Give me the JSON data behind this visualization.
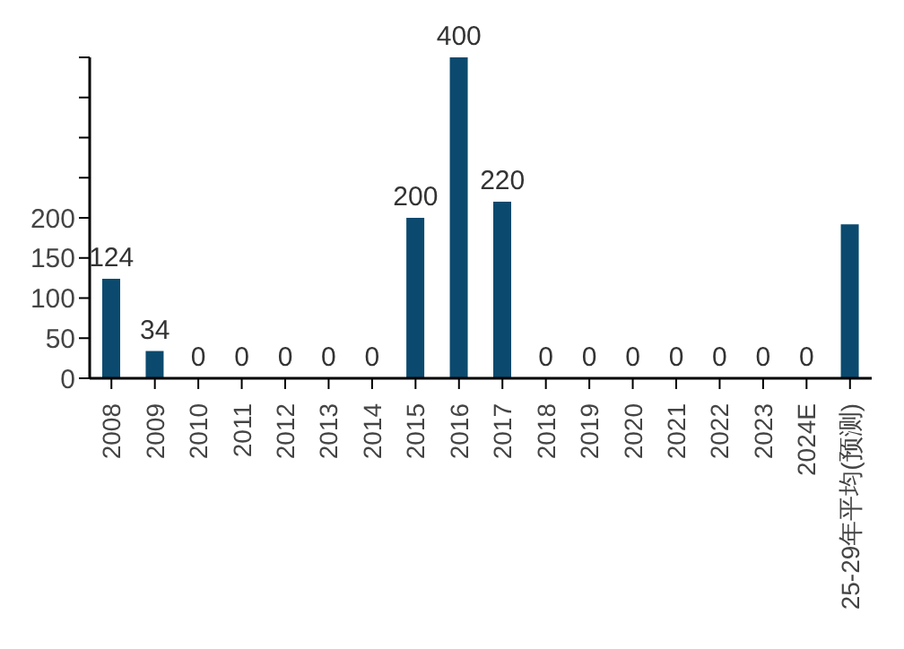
{
  "chart_data": {
    "type": "bar",
    "categories": [
      "2008",
      "2009",
      "2010",
      "2011",
      "2012",
      "2013",
      "2014",
      "2015",
      "2016",
      "2017",
      "2018",
      "2019",
      "2020",
      "2021",
      "2022",
      "2023",
      "2024E",
      "25-29年平均(预测)"
    ],
    "values": [
      124,
      34,
      0,
      0,
      0,
      0,
      0,
      200,
      400,
      220,
      0,
      0,
      0,
      0,
      0,
      0,
      0,
      192
    ],
    "value_labels": [
      "124",
      "34",
      "0",
      "0",
      "0",
      "0",
      "0",
      "200",
      "400",
      "220",
      "0",
      "0",
      "0",
      "0",
      "0",
      "0",
      "0",
      null
    ],
    "color": "#0b4a6e",
    "ylim": [
      0,
      400
    ],
    "yticks": [
      0,
      50,
      100,
      150,
      200,
      {
        "value": 250,
        "label": null
      },
      {
        "value": 300,
        "label": null
      },
      {
        "value": 350,
        "label": null
      },
      {
        "value": 400,
        "label": null
      }
    ],
    "grid": false
  }
}
